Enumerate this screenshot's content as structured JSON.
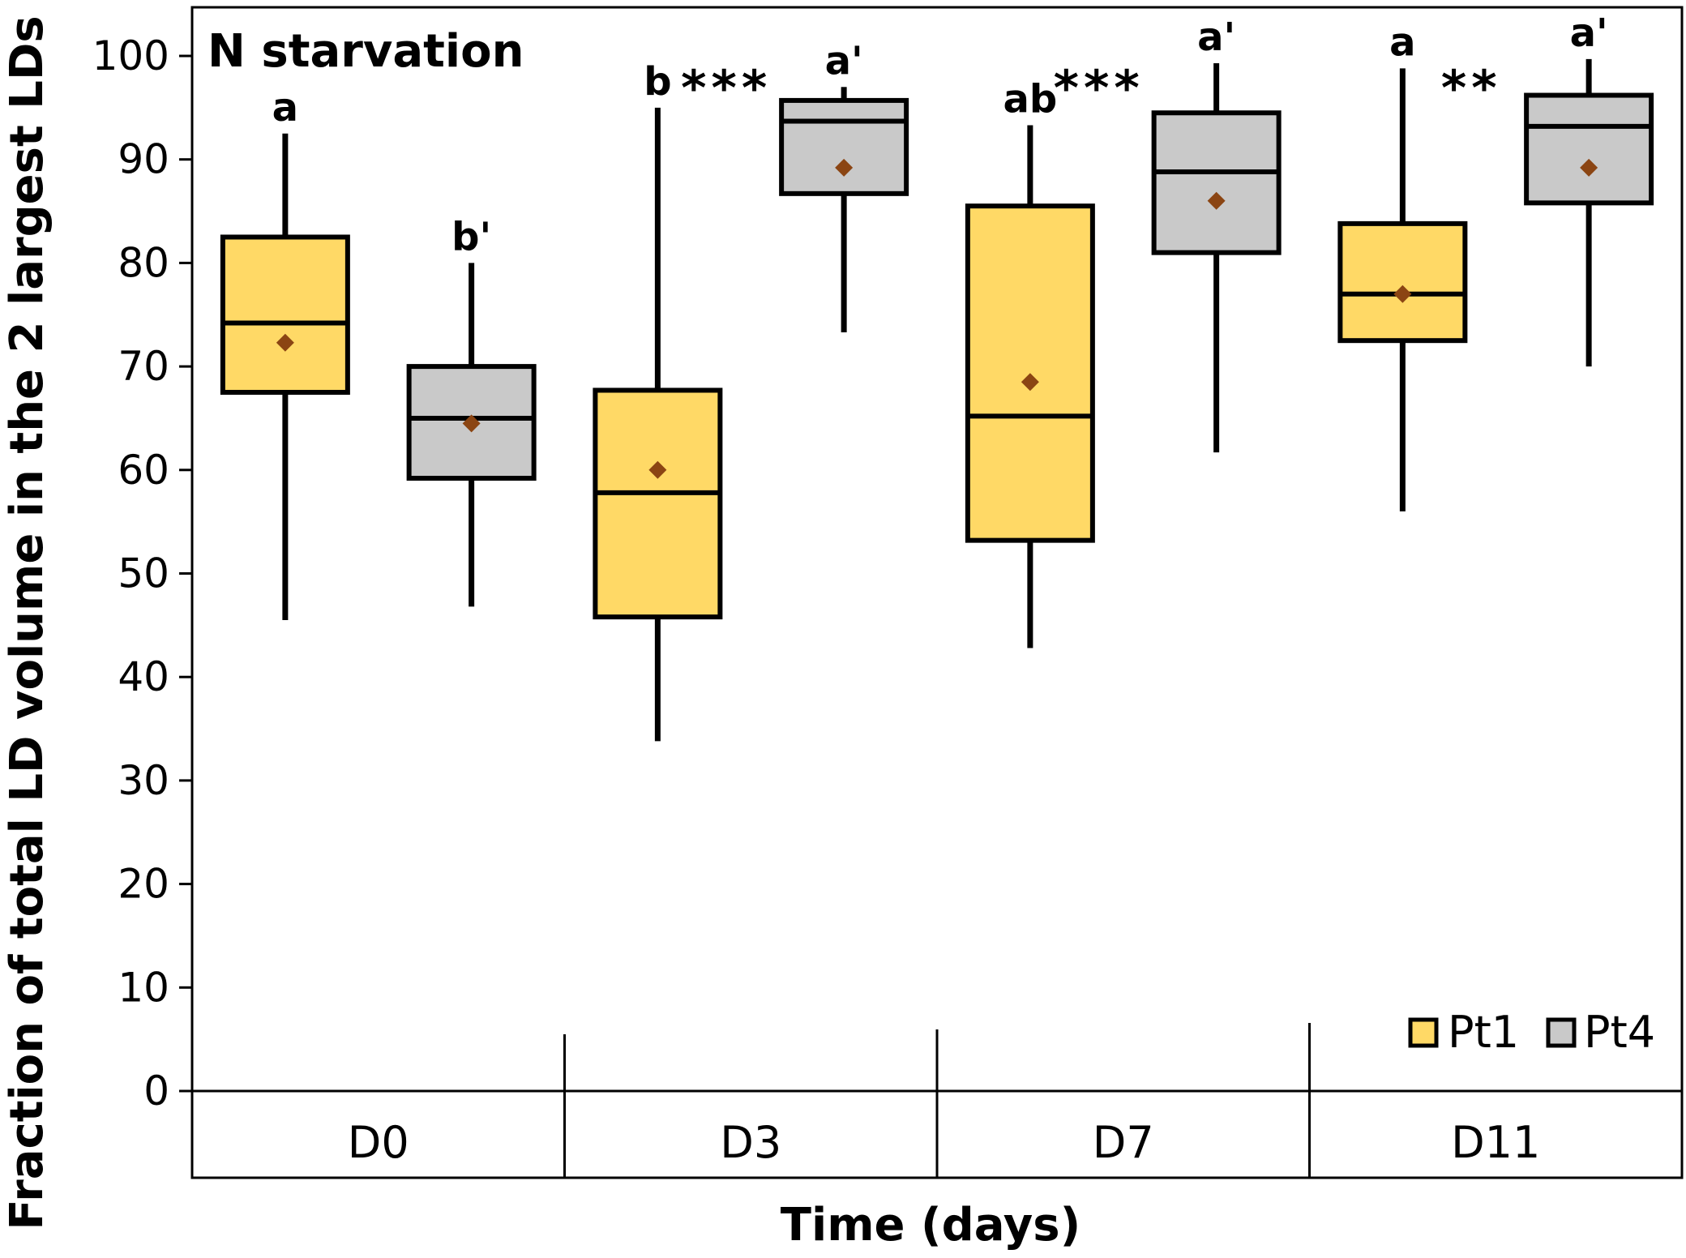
{
  "chart_data": {
    "type": "box",
    "title": "N starvation",
    "title_color": "#C00000",
    "xlabel": "Time (days)",
    "ylabel": "Fraction of total LD volume in the 2 largest LDs (%)",
    "ylim": [
      0,
      100
    ],
    "yticks": [
      0,
      10,
      20,
      30,
      40,
      50,
      60,
      70,
      80,
      90,
      100
    ],
    "ytick_labels": [
      "0",
      "10",
      "20",
      "30",
      "40",
      "50",
      "60",
      "70",
      "80",
      "90",
      "100"
    ],
    "categories": [
      "D0",
      "D3",
      "D7",
      "D11"
    ],
    "series": [
      {
        "name": "Pt1",
        "color": "#FFD966",
        "boxes": [
          {
            "whisker_low": 45.5,
            "q1": 67.5,
            "median": 74.2,
            "q3": 82.5,
            "whisker_high": 92.5,
            "mean": 72.3,
            "letter": "a"
          },
          {
            "whisker_low": 33.8,
            "q1": 45.8,
            "median": 57.8,
            "q3": 67.7,
            "whisker_high": 95.0,
            "mean": 60.0,
            "letter": "b"
          },
          {
            "whisker_low": 42.8,
            "q1": 53.2,
            "median": 65.2,
            "q3": 85.5,
            "whisker_high": 93.3,
            "mean": 68.5,
            "letter": "ab"
          },
          {
            "whisker_low": 56.0,
            "q1": 72.5,
            "median": 77.0,
            "q3": 83.8,
            "whisker_high": 98.8,
            "mean": 77.0,
            "letter": "a"
          }
        ]
      },
      {
        "name": "Pt4",
        "color": "#C9C9C9",
        "boxes": [
          {
            "whisker_low": 46.8,
            "q1": 59.2,
            "median": 65.0,
            "q3": 70.0,
            "whisker_high": 80.0,
            "mean": 64.5,
            "letter": "b'"
          },
          {
            "whisker_low": 73.3,
            "q1": 86.7,
            "median": 93.7,
            "q3": 95.7,
            "whisker_high": 97.0,
            "mean": 89.2,
            "letter": "a'"
          },
          {
            "whisker_low": 61.7,
            "q1": 81.0,
            "median": 88.8,
            "q3": 94.5,
            "whisker_high": 99.3,
            "mean": 86.0,
            "letter": "a'"
          },
          {
            "whisker_low": 70.0,
            "q1": 85.8,
            "median": 93.2,
            "q3": 96.2,
            "whisker_high": 99.7,
            "mean": 89.2,
            "letter": "a'"
          }
        ]
      }
    ],
    "mean_marker_color": "#8B4513",
    "significance": [
      "",
      "***",
      "***",
      "**"
    ],
    "legend": {
      "position": "bottom-right",
      "entries": [
        "Pt1",
        "Pt4"
      ]
    }
  }
}
